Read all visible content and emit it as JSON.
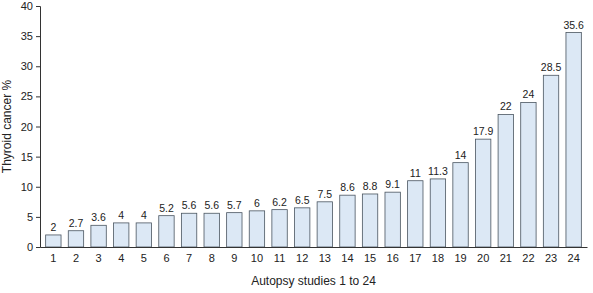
{
  "chart_data": {
    "type": "bar",
    "x_label": "Autopsy studies 1 to 24",
    "y_label": "Thyroid cancer %",
    "categories": [
      "1",
      "2",
      "3",
      "4",
      "5",
      "6",
      "7",
      "8",
      "9",
      "10",
      "11",
      "12",
      "13",
      "14",
      "15",
      "16",
      "17",
      "18",
      "19",
      "20",
      "21",
      "22",
      "23",
      "24"
    ],
    "values": [
      2,
      2.7,
      3.6,
      4,
      4,
      5.2,
      5.6,
      5.6,
      5.7,
      6,
      6.2,
      6.5,
      7.5,
      8.6,
      8.8,
      9.1,
      11,
      11.3,
      14,
      17.9,
      22,
      24,
      28.5,
      35.6
    ],
    "color": "#dce8f5",
    "ylim": [
      0,
      40
    ],
    "yticks": [
      0,
      5,
      10,
      15,
      20,
      25,
      30,
      35,
      40
    ],
    "grid": false,
    "data_labels": true
  }
}
